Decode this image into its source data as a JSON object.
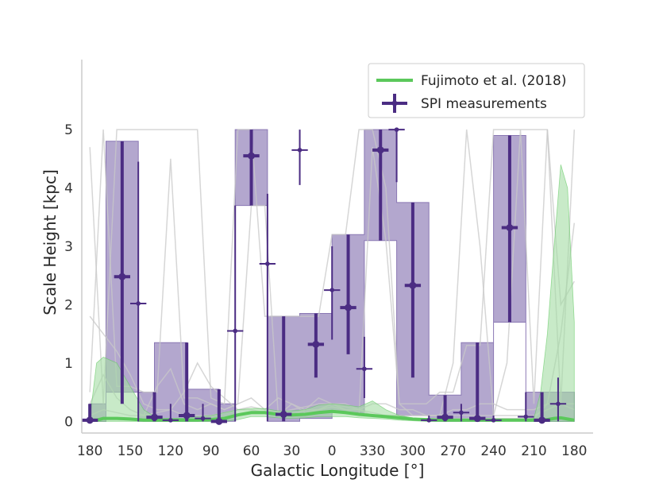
{
  "chart_data": {
    "type": "line",
    "xlabel": "Galactic Longitude [°]",
    "ylabel": "Scale Height [kpc]",
    "x_tick_labels": [
      "180",
      "150",
      "120",
      "90",
      "60",
      "30",
      "0",
      "330",
      "300",
      "270",
      "240",
      "210",
      "180"
    ],
    "y_tick_labels": [
      "0",
      "1",
      "2",
      "3",
      "4",
      "5"
    ],
    "xlim": [
      186,
      -194
    ],
    "ylim": [
      -0.2,
      6.2
    ],
    "grid": false,
    "legend_position": "top-right",
    "legend": [
      "Fujimoto et al. (2018)",
      "SPI measurements"
    ],
    "colors": {
      "spi": "#4b2c83",
      "spi_band": "#8a78b4",
      "fujimoto": "#5bc85b",
      "fujimoto_band": "#a3dca3",
      "gray_lines": "#c8c8c8"
    },
    "spi_band_bins": {
      "edges": [
        180,
        168,
        156,
        144,
        132,
        120,
        108,
        96,
        84,
        72,
        60,
        48,
        36,
        24,
        12,
        0,
        -12,
        -24,
        -36,
        -48,
        -60,
        -72,
        -84,
        -96,
        -108,
        -120,
        -132,
        -144,
        -156,
        -168,
        -180
      ],
      "upper": [
        0.3,
        4.8,
        4.8,
        0.5,
        1.35,
        1.35,
        0.55,
        0.55,
        0.3,
        5.0,
        5.0,
        1.8,
        1.8,
        1.85,
        1.85,
        3.2,
        3.2,
        5.0,
        5.0,
        3.75,
        3.75,
        0.45,
        0.45,
        1.35,
        1.35,
        4.9,
        4.9,
        0.5,
        0.5,
        0.5
      ],
      "lower": [
        0.0,
        0.5,
        0.5,
        0.0,
        0.0,
        0.0,
        0.0,
        0.0,
        0.0,
        3.7,
        3.7,
        0.0,
        0.0,
        0.05,
        0.05,
        0.15,
        0.15,
        3.1,
        3.1,
        0.1,
        0.1,
        0.0,
        0.0,
        0.0,
        0.0,
        1.7,
        1.7,
        0.0,
        0.0,
        0.0
      ]
    },
    "spi_measurements": [
      {
        "x": 180,
        "y": 0.02,
        "xerr": 6,
        "ylo": 0.0,
        "yhi": 0.3,
        "bold": true
      },
      {
        "x": 156,
        "y": 2.48,
        "xerr": 6,
        "ylo": 0.3,
        "yhi": 4.8,
        "bold": true
      },
      {
        "x": 144,
        "y": 2.02,
        "xerr": 6,
        "ylo": 0.0,
        "yhi": 4.45,
        "bold": false
      },
      {
        "x": 132,
        "y": 0.07,
        "xerr": 6,
        "ylo": 0.0,
        "yhi": 0.5,
        "bold": true
      },
      {
        "x": 120,
        "y": 0.02,
        "xerr": 6,
        "ylo": 0.0,
        "yhi": 0.3,
        "bold": false
      },
      {
        "x": 108,
        "y": 0.1,
        "xerr": 6,
        "ylo": 0.0,
        "yhi": 1.35,
        "bold": true
      },
      {
        "x": 96,
        "y": 0.05,
        "xerr": 6,
        "ylo": 0.0,
        "yhi": 0.3,
        "bold": false
      },
      {
        "x": 84,
        "y": 0.0,
        "xerr": 6,
        "ylo": 0.0,
        "yhi": 0.55,
        "bold": true
      },
      {
        "x": 72,
        "y": 1.55,
        "xerr": 6,
        "ylo": 0.0,
        "yhi": 3.7,
        "bold": false
      },
      {
        "x": 60,
        "y": 4.55,
        "xerr": 6,
        "ylo": 3.7,
        "yhi": 5.0,
        "bold": true
      },
      {
        "x": 48,
        "y": 2.7,
        "xerr": 6,
        "ylo": 0.0,
        "yhi": 3.9,
        "bold": false
      },
      {
        "x": 36,
        "y": 0.12,
        "xerr": 6,
        "ylo": 0.0,
        "yhi": 1.8,
        "bold": true
      },
      {
        "x": 24,
        "y": 4.65,
        "xerr": 6,
        "ylo": 4.05,
        "yhi": 5.0,
        "bold": false
      },
      {
        "x": 12,
        "y": 1.32,
        "xerr": 6,
        "ylo": 0.75,
        "yhi": 1.85,
        "bold": true
      },
      {
        "x": 0,
        "y": 2.25,
        "xerr": 6,
        "ylo": 1.4,
        "yhi": 3.0,
        "bold": false
      },
      {
        "x": -12,
        "y": 1.95,
        "xerr": 6,
        "ylo": 1.15,
        "yhi": 3.2,
        "bold": true
      },
      {
        "x": -24,
        "y": 0.9,
        "xerr": 6,
        "ylo": 0.4,
        "yhi": 1.45,
        "bold": false
      },
      {
        "x": -36,
        "y": 4.65,
        "xerr": 6,
        "ylo": 3.1,
        "yhi": 5.0,
        "bold": true
      },
      {
        "x": -48,
        "y": 5.0,
        "xerr": 6,
        "ylo": 4.1,
        "yhi": 5.0,
        "bold": false
      },
      {
        "x": -60,
        "y": 2.33,
        "xerr": 6,
        "ylo": 0.75,
        "yhi": 3.75,
        "bold": true
      },
      {
        "x": -72,
        "y": 0.02,
        "xerr": 6,
        "ylo": 0.0,
        "yhi": 0.1,
        "bold": false
      },
      {
        "x": -84,
        "y": 0.07,
        "xerr": 6,
        "ylo": 0.0,
        "yhi": 0.45,
        "bold": true
      },
      {
        "x": -96,
        "y": 0.15,
        "xerr": 6,
        "ylo": 0.0,
        "yhi": 0.3,
        "bold": false
      },
      {
        "x": -108,
        "y": 0.05,
        "xerr": 6,
        "ylo": 0.0,
        "yhi": 1.35,
        "bold": true
      },
      {
        "x": -120,
        "y": 0.02,
        "xerr": 6,
        "ylo": 0.0,
        "yhi": 0.1,
        "bold": false
      },
      {
        "x": -132,
        "y": 3.32,
        "xerr": 6,
        "ylo": 1.7,
        "yhi": 4.9,
        "bold": true
      },
      {
        "x": -144,
        "y": 0.08,
        "xerr": 6,
        "ylo": 0.0,
        "yhi": 0.5,
        "bold": false
      },
      {
        "x": -156,
        "y": 0.02,
        "xerr": 6,
        "ylo": 0.0,
        "yhi": 0.5,
        "bold": true
      },
      {
        "x": -168,
        "y": 0.3,
        "xerr": 6,
        "ylo": 0.0,
        "yhi": 0.75,
        "bold": false
      }
    ],
    "fujimoto_model": {
      "x": [
        180,
        175,
        170,
        160,
        150,
        140,
        130,
        120,
        110,
        100,
        90,
        80,
        70,
        60,
        50,
        40,
        30,
        20,
        10,
        0,
        -10,
        -20,
        -30,
        -40,
        -50,
        -60,
        -70,
        -80,
        -90,
        -100,
        -110,
        -120,
        -130,
        -140,
        -150,
        -155,
        -160,
        -165,
        -170,
        -175,
        -180
      ],
      "y": [
        0.02,
        0.02,
        0.05,
        0.05,
        0.04,
        0.02,
        0.02,
        0.02,
        0.02,
        0.02,
        0.03,
        0.05,
        0.11,
        0.15,
        0.15,
        0.12,
        0.11,
        0.12,
        0.15,
        0.17,
        0.15,
        0.12,
        0.1,
        0.08,
        0.06,
        0.04,
        0.03,
        0.02,
        0.02,
        0.02,
        0.02,
        0.02,
        0.02,
        0.02,
        0.02,
        0.02,
        0.03,
        0.05,
        0.06,
        0.04,
        0.02
      ],
      "upper": [
        0.05,
        1.0,
        1.1,
        1.0,
        0.6,
        0.2,
        0.05,
        0.05,
        0.05,
        0.08,
        0.1,
        0.15,
        0.2,
        0.22,
        0.22,
        0.18,
        0.18,
        0.2,
        0.28,
        0.3,
        0.28,
        0.25,
        0.35,
        0.2,
        0.1,
        0.06,
        0.04,
        0.03,
        0.03,
        0.03,
        0.03,
        0.03,
        0.03,
        0.03,
        0.05,
        0.5,
        1.5,
        3.0,
        4.4,
        4.0,
        1.7
      ],
      "lower": [
        0.0,
        0.0,
        0.0,
        0.0,
        0.0,
        0.0,
        0.0,
        0.0,
        0.0,
        0.0,
        0.0,
        0.0,
        0.03,
        0.08,
        0.08,
        0.06,
        0.05,
        0.06,
        0.08,
        0.08,
        0.08,
        0.06,
        0.05,
        0.04,
        0.02,
        0.01,
        0.0,
        0.0,
        0.0,
        0.0,
        0.0,
        0.0,
        0.0,
        0.0,
        0.0,
        0.0,
        0.0,
        0.0,
        0.0,
        0.0,
        0.0
      ]
    },
    "gray_lines": [
      {
        "x": [
          180,
          170,
          160,
          150,
          140,
          130,
          120,
          110,
          100,
          90,
          80,
          70,
          60,
          50,
          40,
          30,
          20,
          10,
          0,
          -10,
          -20,
          -30,
          -40,
          -50,
          -60,
          -70,
          -80,
          -90,
          -100,
          -110,
          -120,
          -130,
          -140,
          -150,
          -160,
          -170,
          -180
        ],
        "y": [
          4.7,
          0.3,
          5.0,
          5.0,
          5.0,
          5.0,
          5.0,
          5.0,
          5.0,
          0.4,
          0.3,
          5.0,
          5.0,
          1.8,
          1.8,
          1.8,
          1.8,
          1.8,
          3.2,
          3.2,
          5.0,
          5.0,
          4.0,
          0.3,
          0.3,
          0.3,
          0.5,
          0.5,
          1.3,
          1.3,
          5.0,
          5.0,
          5.0,
          5.0,
          5.0,
          0.3,
          5.0
        ]
      },
      {
        "x": [
          180,
          170,
          160,
          150,
          140,
          130,
          120,
          110,
          100,
          90,
          80,
          70,
          60,
          50,
          40,
          30,
          20,
          10,
          0,
          -10,
          -20,
          -30,
          -40,
          -50,
          -60,
          -70,
          -80,
          -90,
          -100,
          -110,
          -120,
          -130,
          -140,
          -150,
          -160,
          -170,
          -180
        ],
        "y": [
          0.5,
          5.0,
          0.6,
          0.6,
          0.5,
          0.5,
          4.5,
          0.4,
          0.4,
          0.3,
          0.2,
          0.3,
          3.7,
          3.7,
          0.1,
          0.1,
          0.2,
          0.2,
          0.3,
          0.2,
          0.1,
          4.7,
          3.1,
          0.3,
          0.1,
          0.1,
          0.1,
          1.0,
          5.0,
          3.0,
          0.1,
          1.0,
          5.0,
          0.3,
          5.0,
          2.0,
          2.4
        ]
      },
      {
        "x": [
          180,
          170,
          160,
          150,
          140,
          130,
          120,
          110,
          100,
          90,
          80,
          70,
          60,
          50,
          40,
          30,
          20,
          10,
          0,
          -10,
          -20,
          -30,
          -40,
          -50,
          -60,
          -70,
          -80,
          -90,
          -100,
          -110,
          -120,
          -130,
          -140,
          -150,
          -160,
          -170,
          -180
        ],
        "y": [
          1.8,
          1.5,
          1.2,
          0.8,
          0.3,
          0.2,
          0.2,
          0.5,
          1.0,
          0.6,
          0.4,
          0.2,
          0.2,
          0.15,
          0.1,
          0.3,
          0.15,
          0.2,
          0.25,
          0.2,
          0.2,
          0.1,
          0.1,
          0.1,
          0.05,
          0.05,
          0.05,
          0.05,
          0.05,
          0.05,
          0.05,
          0.05,
          0.05,
          0.05,
          0.3,
          1.5,
          3.4
        ]
      },
      {
        "x": [
          180,
          170,
          160,
          150,
          140,
          130,
          120,
          110,
          100,
          90,
          80,
          70,
          60,
          50,
          40,
          30,
          20,
          10,
          0,
          -10,
          -20,
          -30,
          -40,
          -50,
          -60,
          -70,
          -80,
          -90,
          -100,
          -110,
          -120,
          -130,
          -140,
          -150,
          -160,
          -170,
          -180
        ],
        "y": [
          0.3,
          0.8,
          0.4,
          0.2,
          0.1,
          0.6,
          0.9,
          0.3,
          0.2,
          0.3,
          0.2,
          0.3,
          0.4,
          0.2,
          0.4,
          0.3,
          0.2,
          0.4,
          0.3,
          0.3,
          0.2,
          0.3,
          0.3,
          0.2,
          0.2,
          0.1,
          0.1,
          0.2,
          0.2,
          0.3,
          0.3,
          0.2,
          0.2,
          0.2,
          0.3,
          0.3,
          0.3
        ]
      },
      {
        "x": [
          180,
          170,
          160,
          150,
          140,
          130,
          120,
          110,
          100,
          90,
          80,
          70,
          60,
          50,
          40,
          30,
          20,
          10,
          0,
          -10,
          -20,
          -30,
          -40,
          -50,
          -60,
          -70,
          -80,
          -90,
          -100,
          -110,
          -120,
          -130,
          -140,
          -150,
          -160,
          -170,
          -180
        ],
        "y": [
          0.1,
          0.2,
          0.15,
          0.1,
          0.1,
          0.15,
          0.2,
          0.1,
          0.1,
          0.1,
          0.15,
          0.2,
          0.25,
          0.2,
          0.15,
          0.2,
          0.25,
          0.3,
          0.3,
          0.25,
          0.2,
          0.15,
          0.1,
          0.1,
          0.1,
          0.1,
          0.1,
          0.1,
          0.1,
          0.1,
          0.1,
          0.1,
          0.1,
          0.1,
          0.2,
          0.3,
          0.2
        ]
      }
    ]
  }
}
